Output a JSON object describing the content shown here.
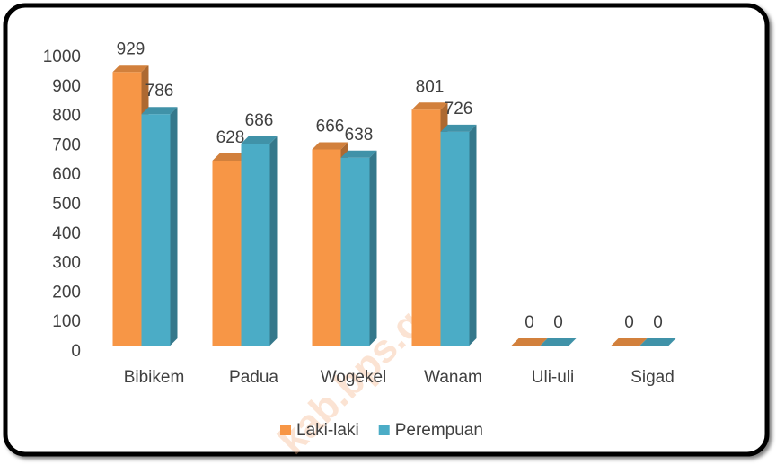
{
  "chart_data": {
    "type": "bar3d",
    "categories": [
      "Bibikem",
      "Padua",
      "Wogekel",
      "Wanam",
      "Uli-uli",
      "Sigad"
    ],
    "series": [
      {
        "name": "Laki-laki",
        "color": "#f79646",
        "values": [
          929,
          628,
          666,
          801,
          0,
          0
        ]
      },
      {
        "name": "Perempuan",
        "color": "#4bacc6",
        "values": [
          786,
          686,
          638,
          726,
          0,
          0
        ]
      }
    ],
    "ylim": [
      0,
      1000
    ],
    "yticks": [
      0,
      100,
      200,
      300,
      400,
      500,
      600,
      700,
      800,
      900,
      1000
    ],
    "legend": "bottom",
    "watermark": "kab.bps.go.id"
  }
}
